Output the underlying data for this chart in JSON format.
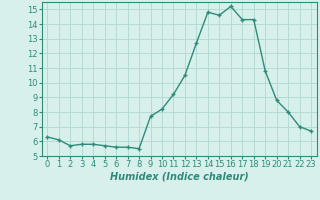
{
  "x": [
    0,
    1,
    2,
    3,
    4,
    5,
    6,
    7,
    8,
    9,
    10,
    11,
    12,
    13,
    14,
    15,
    16,
    17,
    18,
    19,
    20,
    21,
    22,
    23
  ],
  "y": [
    6.3,
    6.1,
    5.7,
    5.8,
    5.8,
    5.7,
    5.6,
    5.6,
    5.5,
    7.7,
    8.2,
    9.2,
    10.5,
    12.7,
    14.8,
    14.6,
    15.2,
    14.3,
    14.3,
    10.8,
    8.8,
    8.0,
    7.0,
    6.7
  ],
  "line_color": "#2e8b7a",
  "marker": "+",
  "marker_size": 3.5,
  "linewidth": 1.0,
  "xlabel": "Humidex (Indice chaleur)",
  "xlabel_fontsize": 7,
  "xlabel_style": "italic",
  "xlabel_weight": "bold",
  "ylim": [
    5,
    15.5
  ],
  "xlim": [
    -0.5,
    23.5
  ],
  "yticks": [
    5,
    6,
    7,
    8,
    9,
    10,
    11,
    12,
    13,
    14,
    15
  ],
  "xticks": [
    0,
    1,
    2,
    3,
    4,
    5,
    6,
    7,
    8,
    9,
    10,
    11,
    12,
    13,
    14,
    15,
    16,
    17,
    18,
    19,
    20,
    21,
    22,
    23
  ],
  "grid_color": "#b0d8d2",
  "bg_color": "#d8f0ec",
  "tick_fontsize": 6,
  "xlabel_color": "#1a1a1a",
  "spine_color": "#2e8b7a"
}
